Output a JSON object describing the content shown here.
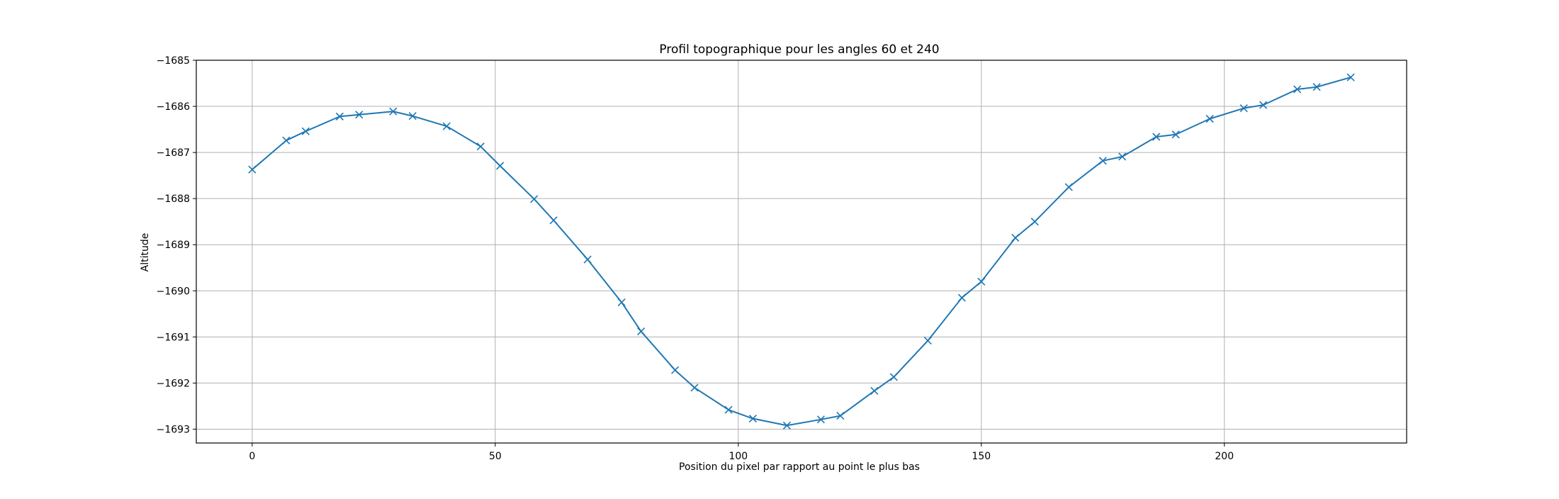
{
  "chart_data": {
    "type": "line",
    "title": "Profil topographique pour les angles 60 et 240",
    "xlabel": "Position du pixel par rapport au point le plus bas",
    "ylabel": "Altitude",
    "xlim": [
      -11.5,
      237.5
    ],
    "ylim": [
      -1693.3,
      -1685
    ],
    "x_ticks": [
      0,
      50,
      100,
      150,
      200
    ],
    "x_tick_labels": [
      "0",
      "50",
      "100",
      "150",
      "200"
    ],
    "y_ticks": [
      -1685,
      -1686,
      -1687,
      -1688,
      -1689,
      -1690,
      -1691,
      -1692,
      -1693
    ],
    "y_tick_labels": [
      "−1685",
      "−1686",
      "−1687",
      "−1688",
      "−1689",
      "−1690",
      "−1691",
      "−1692",
      "−1693"
    ],
    "grid": true,
    "legend": "none",
    "marker": "x",
    "line_color": "#1f77b4",
    "series": [
      {
        "x": [
          0,
          7,
          11,
          18,
          22,
          29,
          33,
          40,
          47,
          51,
          58,
          62,
          69,
          76,
          80,
          87,
          91,
          98,
          103,
          110,
          117,
          121,
          128,
          132,
          139,
          146,
          150,
          157,
          161,
          168,
          175,
          179,
          186,
          190,
          197,
          204,
          208,
          215,
          219,
          226
        ],
        "y": [
          -1687.37,
          -1686.74,
          -1686.54,
          -1686.22,
          -1686.18,
          -1686.11,
          -1686.21,
          -1686.43,
          -1686.87,
          -1687.29,
          -1688.01,
          -1688.47,
          -1689.32,
          -1690.25,
          -1690.88,
          -1691.72,
          -1692.1,
          -1692.58,
          -1692.77,
          -1692.92,
          -1692.79,
          -1692.71,
          -1692.17,
          -1691.87,
          -1691.08,
          -1690.15,
          -1689.8,
          -1688.85,
          -1688.5,
          -1687.75,
          -1687.18,
          -1687.09,
          -1686.66,
          -1686.61,
          -1686.27,
          -1686.04,
          -1685.97,
          -1685.63,
          -1685.58,
          -1685.37
        ]
      }
    ]
  }
}
